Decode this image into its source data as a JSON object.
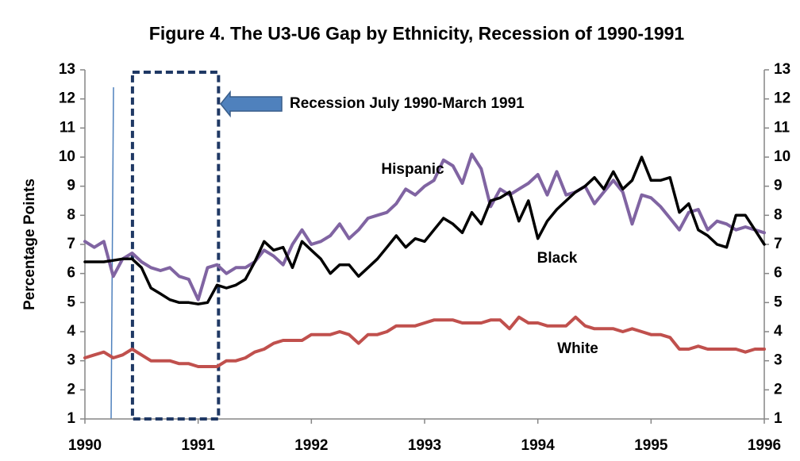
{
  "chart_data": {
    "type": "line",
    "title": "Figure 4. The U3-U6 Gap by Ethnicity, Recession of 1990-1991",
    "y_label": "Percentage Points",
    "annotation": "Recession July 1990-March 1991",
    "recession": [
      1990.42,
      1991.18
    ],
    "xlim": [
      1990,
      1996
    ],
    "xticks": [
      1990,
      1991,
      1992,
      1993,
      1994,
      1995,
      1996
    ],
    "ylim": [
      1,
      13
    ],
    "yticks": [
      1,
      2,
      3,
      4,
      5,
      6,
      7,
      8,
      9,
      10,
      11,
      12,
      13
    ],
    "y2lim": [
      1,
      13
    ],
    "y2ticks": [
      1,
      2,
      3,
      4,
      5,
      6,
      7,
      8,
      9,
      10,
      11,
      12,
      13
    ],
    "grid": false,
    "x": [
      1990,
      1990.083,
      1990.167,
      1990.25,
      1990.333,
      1990.417,
      1990.5,
      1990.583,
      1990.667,
      1990.75,
      1990.833,
      1990.917,
      1991,
      1991.083,
      1991.167,
      1991.25,
      1991.333,
      1991.417,
      1991.5,
      1991.583,
      1991.667,
      1991.75,
      1991.833,
      1991.917,
      1992,
      1992.083,
      1992.167,
      1992.25,
      1992.333,
      1992.417,
      1992.5,
      1992.583,
      1992.667,
      1992.75,
      1992.833,
      1992.917,
      1993,
      1993.083,
      1993.167,
      1993.25,
      1993.333,
      1993.417,
      1993.5,
      1993.583,
      1993.667,
      1993.75,
      1993.833,
      1993.917,
      1994,
      1994.083,
      1994.167,
      1994.25,
      1994.333,
      1994.417,
      1994.5,
      1994.583,
      1994.667,
      1994.75,
      1994.833,
      1994.917,
      1995,
      1995.083,
      1995.167,
      1995.25,
      1995.333,
      1995.417,
      1995.5,
      1995.583,
      1995.667,
      1995.75,
      1995.833,
      1995.917,
      1996
    ],
    "series": [
      {
        "name": "Hispanic",
        "color": "#8064a2",
        "values": [
          7.1,
          6.9,
          7.1,
          5.9,
          6.5,
          6.7,
          6.4,
          6.2,
          6.1,
          6.2,
          5.9,
          5.8,
          5.1,
          6.2,
          6.3,
          6.0,
          6.2,
          6.2,
          6.4,
          6.8,
          6.6,
          6.3,
          7.0,
          7.5,
          7.0,
          7.1,
          7.3,
          7.7,
          7.2,
          7.5,
          7.9,
          8.0,
          8.1,
          8.4,
          8.9,
          8.7,
          9.0,
          9.2,
          9.9,
          9.7,
          9.1,
          10.1,
          9.6,
          8.3,
          8.9,
          8.7,
          8.9,
          9.1,
          9.4,
          8.7,
          9.5,
          8.7,
          8.8,
          9.0,
          8.4,
          8.8,
          9.2,
          8.8,
          7.7,
          8.7,
          8.6,
          8.3,
          7.9,
          7.5,
          8.1,
          8.2,
          7.5,
          7.8,
          7.7,
          7.5,
          7.6,
          7.5,
          7.4
        ]
      },
      {
        "name": "Black",
        "color": "#000000",
        "values": [
          6.4,
          6.4,
          6.4,
          6.45,
          6.5,
          6.5,
          6.2,
          5.5,
          5.3,
          5.1,
          5.0,
          5.0,
          4.95,
          5.0,
          5.6,
          5.5,
          5.6,
          5.8,
          6.4,
          7.1,
          6.8,
          6.9,
          6.2,
          7.1,
          6.8,
          6.5,
          6.0,
          6.3,
          6.3,
          5.9,
          6.2,
          6.5,
          6.9,
          7.3,
          6.9,
          7.2,
          7.1,
          7.5,
          7.9,
          7.7,
          7.4,
          8.1,
          7.7,
          8.5,
          8.6,
          8.8,
          7.8,
          8.5,
          7.2,
          7.8,
          8.2,
          8.5,
          8.8,
          9.0,
          9.3,
          8.9,
          9.5,
          8.9,
          9.2,
          10.0,
          9.2,
          9.2,
          9.3,
          8.1,
          8.4,
          7.5,
          7.3,
          7.0,
          6.9,
          8.0,
          8.0,
          7.5,
          7.0
        ]
      },
      {
        "name": "White",
        "color": "#c0504d",
        "values": [
          3.1,
          3.2,
          3.3,
          3.1,
          3.2,
          3.4,
          3.2,
          3.0,
          3.0,
          3.0,
          2.9,
          2.9,
          2.8,
          2.8,
          2.8,
          3.0,
          3.0,
          3.1,
          3.3,
          3.4,
          3.6,
          3.7,
          3.7,
          3.7,
          3.9,
          3.9,
          3.9,
          4.0,
          3.9,
          3.6,
          3.9,
          3.9,
          4.0,
          4.2,
          4.2,
          4.2,
          4.3,
          4.4,
          4.4,
          4.4,
          4.3,
          4.3,
          4.3,
          4.4,
          4.4,
          4.1,
          4.5,
          4.3,
          4.3,
          4.2,
          4.2,
          4.2,
          4.5,
          4.2,
          4.1,
          4.1,
          4.1,
          4.0,
          4.1,
          4.0,
          3.9,
          3.9,
          3.8,
          3.4,
          3.4,
          3.5,
          3.4,
          3.4,
          3.4,
          3.4,
          3.3,
          3.4,
          3.4
        ]
      }
    ]
  }
}
